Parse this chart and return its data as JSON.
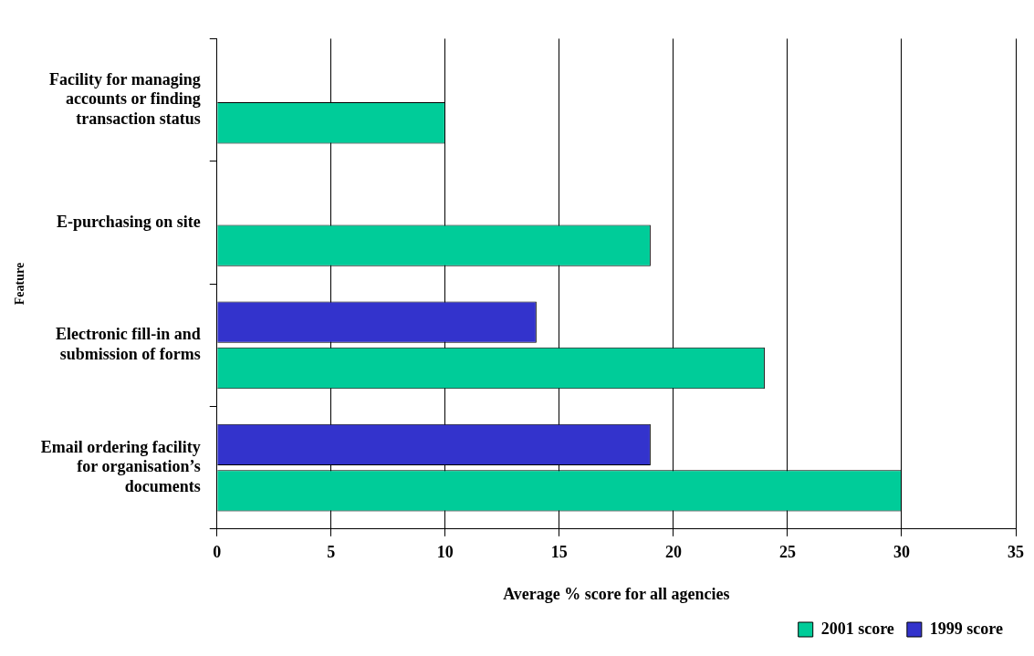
{
  "chart_data": {
    "type": "bar",
    "orientation": "horizontal",
    "xlabel": "Average % score for all agencies",
    "ylabel": "Feature",
    "categories": [
      "Facility for managing accounts or finding transaction status",
      "E-purchasing on site",
      "Electronic fill-in and submission of forms",
      "Email ordering facility for organisation’s documents"
    ],
    "series": [
      {
        "name": "2001 score",
        "color": "#00cc99",
        "values": [
          10,
          19,
          24,
          30
        ]
      },
      {
        "name": "1999 score",
        "color": "#3333cc",
        "values": [
          null,
          null,
          14,
          19
        ]
      }
    ],
    "xlim": [
      0,
      35
    ],
    "xticks": [
      0,
      5,
      10,
      15,
      20,
      25,
      30,
      35
    ],
    "grid": "x",
    "legend": "bottom right"
  }
}
